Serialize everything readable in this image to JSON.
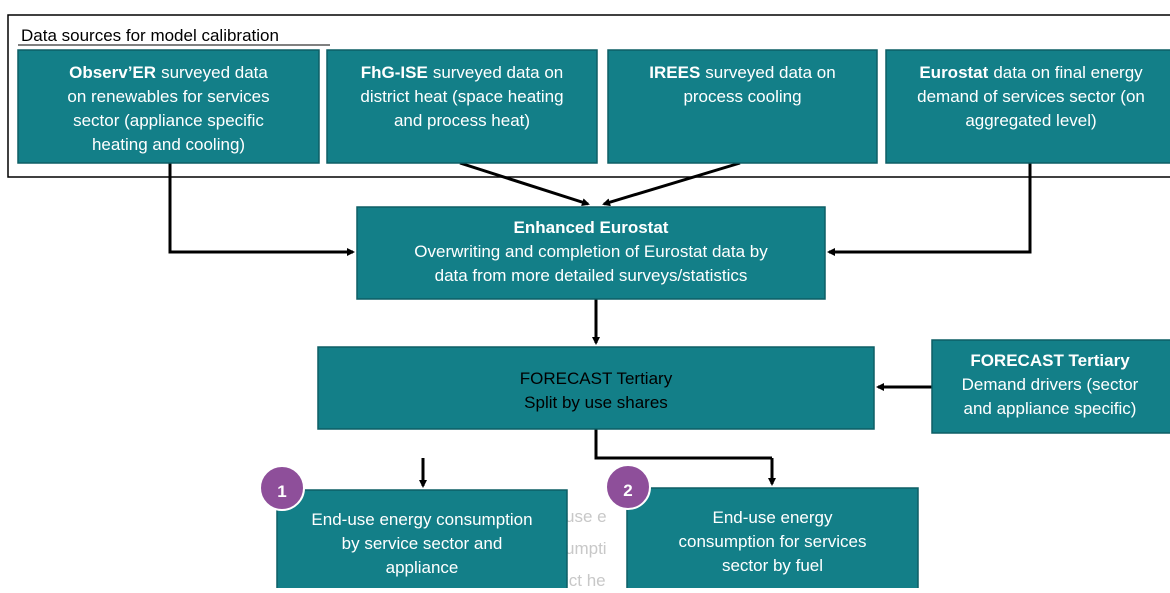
{
  "frame_label": "Data sources for model calibration",
  "sources": [
    {
      "bold": "Observ’ER",
      "lines": [
        "surveyed data",
        "on renewables for services",
        "sector  (appliance specific",
        "heating and cooling)"
      ]
    },
    {
      "bold": "FhG-ISE",
      "lines": [
        "surveyed data on",
        "district heat (space heating",
        "and process heat)"
      ]
    },
    {
      "bold": "IREES",
      "lines": [
        "surveyed data on",
        "process cooling"
      ]
    },
    {
      "bold": "Eurostat",
      "lines": [
        "data on final energy",
        "demand of services sector (on",
        "aggregated level)"
      ]
    }
  ],
  "enhanced": {
    "title": "Enhanced Eurostat",
    "lines": [
      "Overwriting and completion of Eurostat data by",
      "data from more detailed surveys/statistics"
    ]
  },
  "forecast": {
    "lines": [
      "FORECAST Tertiary",
      "Split by use shares"
    ]
  },
  "drivers": {
    "title": "FORECAST Tertiary",
    "lines": [
      "Demand drivers (sector",
      "and appliance specific)"
    ]
  },
  "ghost": [
    "use e",
    "umpti",
    "ict he"
  ],
  "outputs": [
    {
      "badge": "1",
      "lines": [
        "End-use energy consumption",
        "by service sector and",
        "appliance"
      ]
    },
    {
      "badge": "2",
      "lines": [
        "End-use energy",
        "consumption for services",
        "sector by fuel"
      ]
    }
  ]
}
